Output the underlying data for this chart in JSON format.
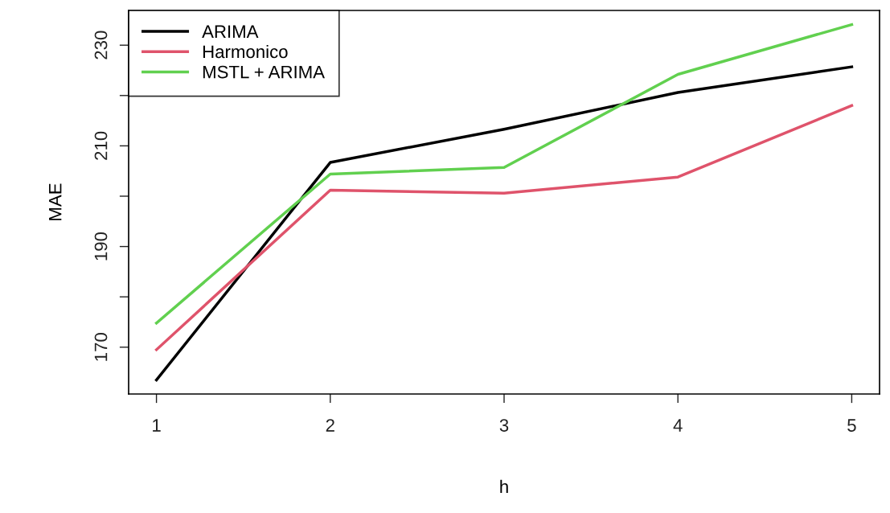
{
  "chart_data": {
    "type": "line",
    "xlabel": "h",
    "ylabel": "MAE",
    "x": [
      1,
      2,
      3,
      4,
      5
    ],
    "series": [
      {
        "name": "ARIMA",
        "color": "#000000",
        "values": [
          163.5,
          206.7,
          213.3,
          220.6,
          225.7
        ]
      },
      {
        "name": "Harmonico",
        "color": "#df536b",
        "values": [
          169.5,
          201.2,
          200.6,
          203.8,
          218.0
        ]
      },
      {
        "name": "MSTL + ARIMA",
        "color": "#61d04f",
        "values": [
          174.8,
          204.4,
          205.7,
          224.2,
          234.1
        ]
      }
    ],
    "xlim": [
      0.84,
      5.16
    ],
    "xticks": [
      1,
      2,
      3,
      4,
      5
    ],
    "ylim": [
      160.7,
      236.9
    ],
    "yticks": [
      170,
      {
        "value": 180,
        "label": null
      },
      190,
      {
        "value": 200,
        "label": null
      },
      210,
      {
        "value": 220,
        "label": null
      },
      230
    ],
    "legend": "top left",
    "grid": false,
    "marker": "none",
    "line_style": "solid"
  }
}
